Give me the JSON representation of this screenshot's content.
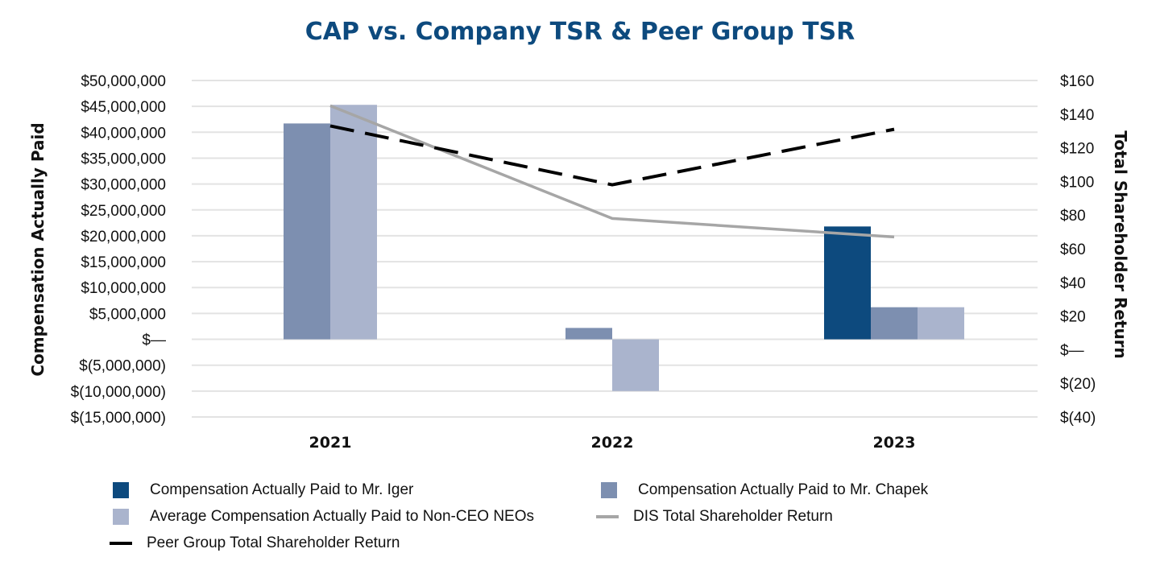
{
  "chart_data": {
    "type": "bar",
    "title": "CAP vs. Company TSR & Peer Group TSR",
    "categories": [
      "2021",
      "2022",
      "2023"
    ],
    "ylabel": "Compensation Actually Paid",
    "y2label": "Total Shareholder Return",
    "ylim": [
      -15000000,
      50000000
    ],
    "y2lim": [
      -40,
      160
    ],
    "yticks": [
      "$50,000,000",
      "$45,000,000",
      "$40,000,000",
      "$35,000,000",
      "$30,000,000",
      "$25,000,000",
      "$20,000,000",
      "$15,000,000",
      "$10,000,000",
      "$5,000,000",
      "$—",
      "$(5,000,000)",
      "$(10,000,000)",
      "$(15,000,000)"
    ],
    "y2ticks": [
      "$160",
      "$140",
      "$120",
      "$100",
      "$80",
      "$60",
      "$40",
      "$20",
      "$—",
      "$(20)",
      "$(40)"
    ],
    "grid": true,
    "legend_position": "bottom",
    "series": [
      {
        "name": "Compensation Actually Paid to Mr. Iger",
        "kind": "bar",
        "axis": "left",
        "color": "#0d4a7e",
        "values": [
          null,
          null,
          21800000
        ]
      },
      {
        "name": "Compensation Actually Paid to Mr. Chapek",
        "kind": "bar",
        "axis": "left",
        "color": "#7d8fb0",
        "values": [
          41700000,
          2200000,
          6200000
        ]
      },
      {
        "name": "Average Compensation Actually Paid to Non-CEO NEOs",
        "kind": "bar",
        "axis": "left",
        "color": "#aab4cd",
        "values": [
          45300000,
          -10000000,
          6200000
        ]
      },
      {
        "name": "DIS Total Shareholder Return",
        "kind": "line",
        "axis": "right",
        "color": "#a6a6a6",
        "style": "solid",
        "values": [
          145,
          78,
          67
        ]
      },
      {
        "name": "Peer Group Total Shareholder Return",
        "kind": "line",
        "axis": "right",
        "color": "#000000",
        "style": "dashed",
        "values": [
          133,
          98,
          131
        ]
      }
    ]
  },
  "legend": {
    "items": [
      {
        "label": "Compensation Actually Paid to Mr. Iger",
        "type": "box",
        "color": "#0d4a7e"
      },
      {
        "label": "Compensation Actually Paid to Mr. Chapek",
        "type": "box",
        "color": "#7d8fb0"
      },
      {
        "label": "Average Compensation Actually Paid to Non-CEO NEOs",
        "type": "box",
        "color": "#aab4cd"
      },
      {
        "label": "DIS Total Shareholder Return",
        "type": "line",
        "color": "#a6a6a6"
      },
      {
        "label": "Peer Group Total Shareholder Return",
        "type": "line",
        "color": "#000000"
      }
    ]
  }
}
